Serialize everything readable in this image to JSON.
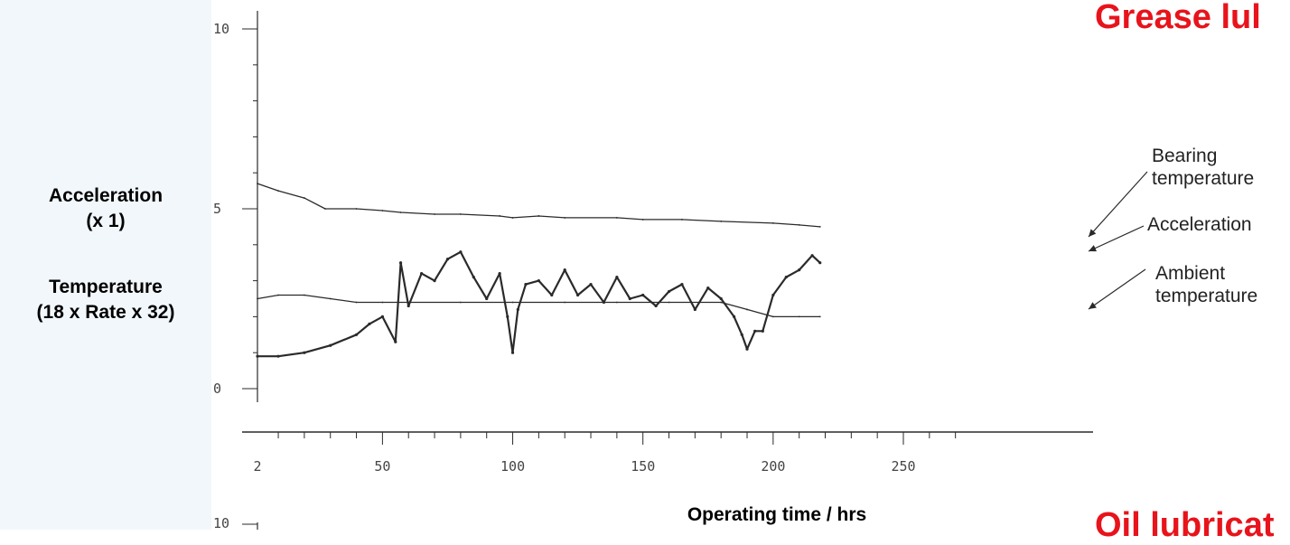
{
  "sections": {
    "grease_title": "Grease lul",
    "oil_title": "Oil lubricat"
  },
  "ylabel": {
    "acceleration": "Acceleration",
    "acceleration_scale": "(x 1)",
    "temperature": "Temperature",
    "temperature_scale": "(18 x Rate x 32)"
  },
  "xlabel": "Operating time / hrs",
  "legend": {
    "bearing_line1": "Bearing",
    "bearing_line2": "temperature",
    "acceleration": "Acceleration",
    "ambient_line1": "Ambient",
    "ambient_line2": "temperature"
  },
  "colors": {
    "title_red": "#e8131b",
    "trace": "#2a2a2a",
    "panel_bg": "#f2f7fb"
  },
  "chart_data": {
    "type": "line",
    "x_ticks": [
      "2",
      "50",
      "100",
      "150",
      "200",
      "250"
    ],
    "y_ticks": [
      "10",
      "5",
      "0"
    ],
    "lower_y_tick": "10",
    "xlim": [
      2,
      250
    ],
    "ylim": [
      0,
      10
    ],
    "series": [
      {
        "name": "Bearing temperature",
        "x": [
          2,
          10,
          20,
          28,
          40,
          50,
          57,
          70,
          80,
          95,
          100,
          110,
          120,
          140,
          150,
          165,
          180,
          200,
          210,
          218
        ],
        "y": [
          5.7,
          5.5,
          5.3,
          5.0,
          5.0,
          4.95,
          4.9,
          4.85,
          4.85,
          4.8,
          4.75,
          4.8,
          4.75,
          4.75,
          4.7,
          4.7,
          4.65,
          4.6,
          4.55,
          4.5
        ]
      },
      {
        "name": "Acceleration",
        "x": [
          2,
          10,
          20,
          30,
          40,
          45,
          50,
          55,
          57,
          60,
          65,
          70,
          75,
          80,
          85,
          90,
          95,
          98,
          100,
          102,
          105,
          110,
          115,
          120,
          125,
          130,
          135,
          140,
          145,
          150,
          155,
          160,
          165,
          170,
          175,
          180,
          185,
          188,
          190,
          193,
          196,
          200,
          205,
          210,
          215,
          218
        ],
        "y": [
          0.9,
          0.9,
          1.0,
          1.2,
          1.5,
          1.8,
          2.0,
          1.3,
          3.5,
          2.3,
          3.2,
          3.0,
          3.6,
          3.8,
          3.1,
          2.5,
          3.2,
          2.0,
          1.0,
          2.2,
          2.9,
          3.0,
          2.6,
          3.3,
          2.6,
          2.9,
          2.4,
          3.1,
          2.5,
          2.6,
          2.3,
          2.7,
          2.9,
          2.2,
          2.8,
          2.5,
          2.0,
          1.5,
          1.1,
          1.6,
          1.6,
          2.6,
          3.1,
          3.3,
          3.7,
          3.5
        ]
      },
      {
        "name": "Ambient temperature",
        "x": [
          2,
          10,
          20,
          30,
          40,
          50,
          60,
          80,
          100,
          120,
          140,
          160,
          180,
          190,
          200,
          210,
          218
        ],
        "y": [
          2.5,
          2.6,
          2.6,
          2.5,
          2.4,
          2.4,
          2.4,
          2.4,
          2.4,
          2.4,
          2.4,
          2.4,
          2.4,
          2.2,
          2.0,
          2.0,
          2.0
        ]
      }
    ]
  }
}
